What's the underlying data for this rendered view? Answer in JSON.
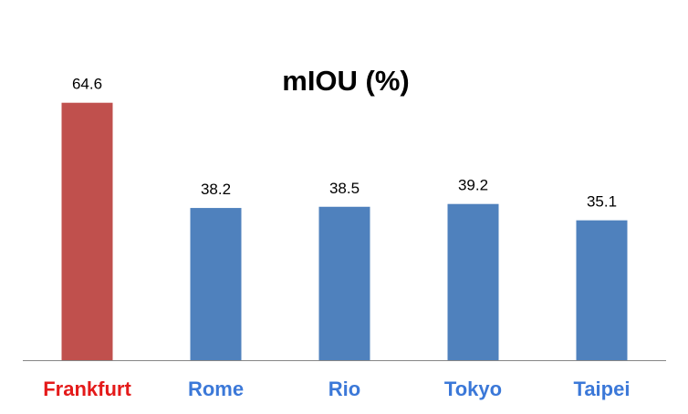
{
  "chart_data": {
    "type": "bar",
    "title": "mIOU (%)",
    "xlabel": "",
    "ylabel": "",
    "categories": [
      "Frankfurt",
      "Rome",
      "Rio",
      "Tokyo",
      "Taipei"
    ],
    "values": [
      64.6,
      38.2,
      38.5,
      39.2,
      35.1
    ],
    "data_labels": [
      "64.6",
      "38.2",
      "38.5",
      "39.2",
      "35.1"
    ],
    "ylim": [
      0,
      66
    ],
    "grid": false,
    "legend": "none",
    "bar_colors": [
      "#C0504D",
      "#4F81BD",
      "#4F81BD",
      "#4F81BD",
      "#4F81BD"
    ],
    "category_label_colors": [
      "#E41A1A",
      "#3B78D8",
      "#3B78D8",
      "#3B78D8",
      "#3B78D8"
    ],
    "axis_color": "#868686"
  }
}
